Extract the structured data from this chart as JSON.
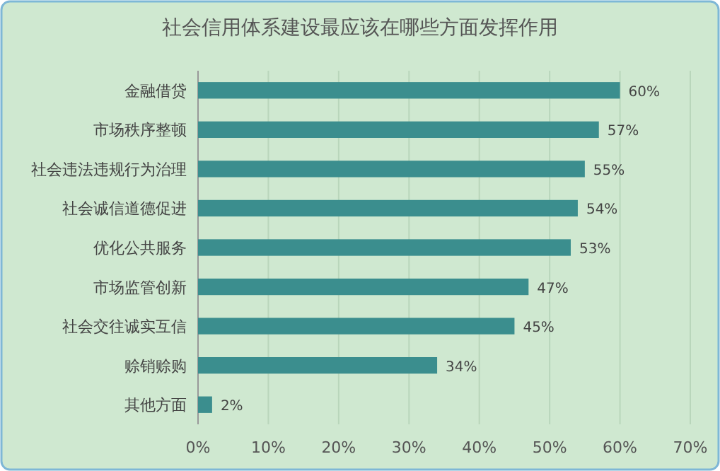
{
  "chart_data": {
    "type": "bar",
    "orientation": "horizontal",
    "title": "社会信用体系建设最应该在哪些方面发挥作用",
    "categories": [
      "金融借贷",
      "市场秩序整顿",
      "社会违法违规行为治理",
      "社会诚信道德促进",
      "优化公共服务",
      "市场监管创新",
      "社会交往诚实互信",
      "赊销赊购",
      "其他方面"
    ],
    "values": [
      60,
      57,
      55,
      54,
      53,
      47,
      45,
      34,
      2
    ],
    "value_labels": [
      "60%",
      "57%",
      "55%",
      "54%",
      "53%",
      "47%",
      "45%",
      "34%",
      "2%"
    ],
    "color": "#3b8e8e",
    "xlim": [
      0,
      70
    ],
    "xticks": [
      {
        "value": 0,
        "label": "0%"
      },
      {
        "value": 10,
        "label": "10%"
      },
      {
        "value": 20,
        "label": "20%"
      },
      {
        "value": 30,
        "label": "30%"
      },
      {
        "value": 40,
        "label": "40%"
      },
      {
        "value": 50,
        "label": "50%"
      },
      {
        "value": 60,
        "label": "60%"
      },
      {
        "value": 70,
        "label": "70%"
      }
    ],
    "grid": "x"
  }
}
